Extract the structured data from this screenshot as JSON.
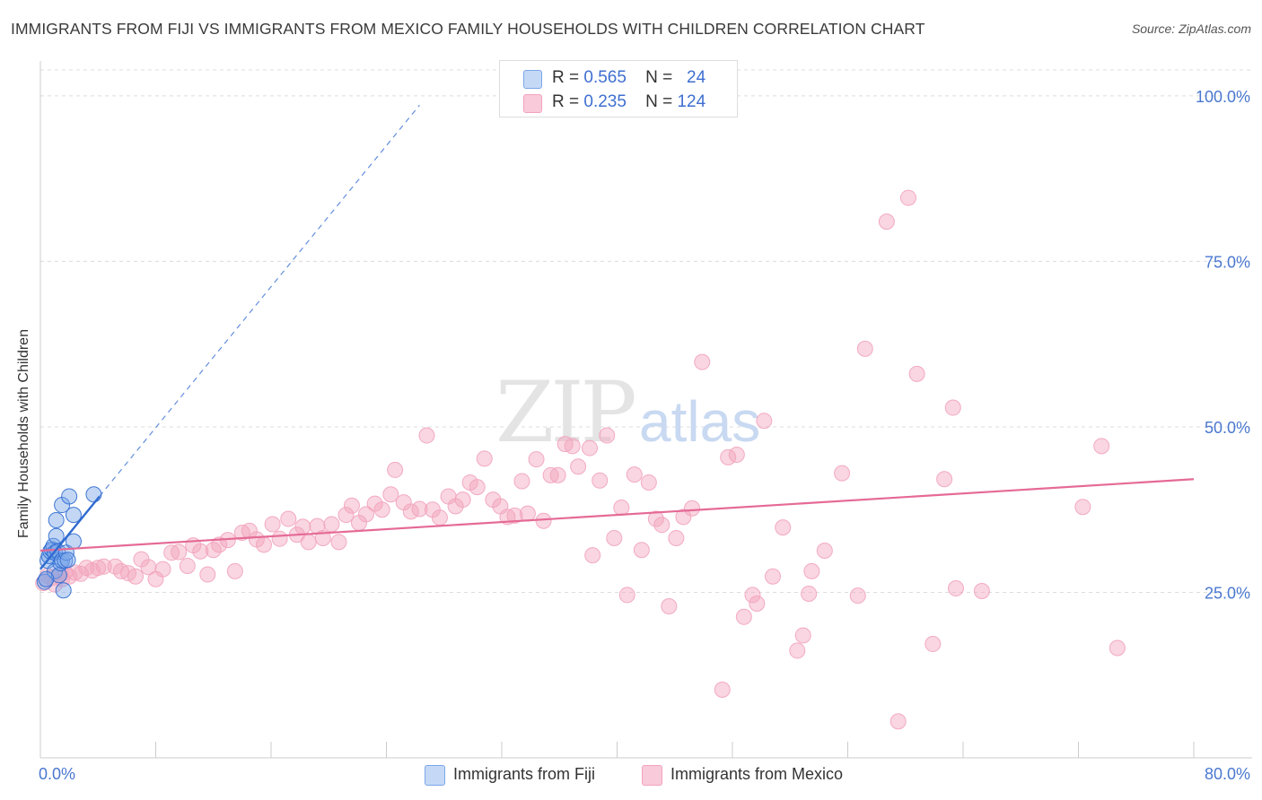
{
  "title": "IMMIGRANTS FROM FIJI VS IMMIGRANTS FROM MEXICO FAMILY HOUSEHOLDS WITH CHILDREN CORRELATION CHART",
  "source": "Source: ZipAtlas.com",
  "watermark": {
    "zip": "ZIP",
    "atlas": "atlas"
  },
  "legend": {
    "rows": [
      {
        "r_label": "R =",
        "r_value": "0.565",
        "n_label": "N =",
        "n_value": "24"
      },
      {
        "r_label": "R =",
        "r_value": "0.235",
        "n_label": "N =",
        "n_value": "124"
      }
    ]
  },
  "chart_data": {
    "type": "scatter",
    "title": "IMMIGRANTS FROM FIJI VS IMMIGRANTS FROM MEXICO FAMILY HOUSEHOLDS WITH CHILDREN CORRELATION CHART",
    "xlabel": "",
    "ylabel": "Family Households with Children",
    "xlim": [
      0,
      80
    ],
    "ylim": [
      0,
      105
    ],
    "x_tick_labels": [
      "0.0%",
      "80.0%"
    ],
    "y_tick_labels": [
      "25.0%",
      "50.0%",
      "75.0%",
      "100.0%"
    ],
    "y_ticks": [
      25,
      50,
      75,
      100
    ],
    "grid": true,
    "legend_placement": "bottom-center",
    "series": [
      {
        "name": "Immigrants from Fiji",
        "color": "#7aa6e8",
        "line_color": "#2f6ad0",
        "r": 0.565,
        "n": 24,
        "trend": {
          "x": [
            0,
            4.1
          ],
          "y": [
            28.5,
            39.5
          ]
        },
        "trend_extension": {
          "x": [
            4.1,
            26.3
          ],
          "y": [
            39.5,
            98.6
          ]
        },
        "points": [
          [
            0.3,
            26.6
          ],
          [
            0.5,
            29.8
          ],
          [
            0.6,
            30.5
          ],
          [
            0.7,
            31.2
          ],
          [
            0.8,
            31.5
          ],
          [
            0.9,
            32.0
          ],
          [
            1.0,
            28.2
          ],
          [
            1.0,
            31.0
          ],
          [
            1.1,
            35.9
          ],
          [
            1.1,
            33.5
          ],
          [
            1.2,
            31.2
          ],
          [
            1.3,
            27.6
          ],
          [
            1.4,
            29.4
          ],
          [
            1.5,
            38.2
          ],
          [
            1.5,
            29.8
          ],
          [
            1.6,
            25.3
          ],
          [
            1.7,
            29.8
          ],
          [
            1.8,
            31.0
          ],
          [
            1.9,
            29.9
          ],
          [
            2.0,
            39.5
          ],
          [
            2.3,
            32.7
          ],
          [
            2.3,
            36.7
          ],
          [
            3.7,
            39.8
          ],
          [
            0.4,
            27.0
          ]
        ]
      },
      {
        "name": "Immigrants from Mexico",
        "color": "#f2a3bd",
        "line_color": "#e56a96",
        "r": 0.235,
        "n": 124,
        "trend": {
          "x": [
            0,
            80
          ],
          "y": [
            31.3,
            42.1
          ]
        },
        "points": [
          [
            0.2,
            26.4
          ],
          [
            0.5,
            27.5
          ],
          [
            0.8,
            27.2
          ],
          [
            1.0,
            26.2
          ],
          [
            1.3,
            27.6
          ],
          [
            1.5,
            27.0
          ],
          [
            1.7,
            28.0
          ],
          [
            2.0,
            27.4
          ],
          [
            2.4,
            28.0
          ],
          [
            2.8,
            27.8
          ],
          [
            3.2,
            28.7
          ],
          [
            3.6,
            28.3
          ],
          [
            4.0,
            28.7
          ],
          [
            4.4,
            28.9
          ],
          [
            5.2,
            28.9
          ],
          [
            5.6,
            28.2
          ],
          [
            6.1,
            27.9
          ],
          [
            6.6,
            27.4
          ],
          [
            7.0,
            30.0
          ],
          [
            7.5,
            28.8
          ],
          [
            8.0,
            27.0
          ],
          [
            8.5,
            28.5
          ],
          [
            9.1,
            31.0
          ],
          [
            9.6,
            31.1
          ],
          [
            10.2,
            29.0
          ],
          [
            10.6,
            32.1
          ],
          [
            11.1,
            31.2
          ],
          [
            11.6,
            27.7
          ],
          [
            12.0,
            31.4
          ],
          [
            12.4,
            32.2
          ],
          [
            13.0,
            32.9
          ],
          [
            13.5,
            28.2
          ],
          [
            14.0,
            34.0
          ],
          [
            14.5,
            34.3
          ],
          [
            15.0,
            33.0
          ],
          [
            15.5,
            32.2
          ],
          [
            16.1,
            35.3
          ],
          [
            16.6,
            33.1
          ],
          [
            17.2,
            36.1
          ],
          [
            17.8,
            33.7
          ],
          [
            18.2,
            34.9
          ],
          [
            18.6,
            32.6
          ],
          [
            19.2,
            35.0
          ],
          [
            19.6,
            33.2
          ],
          [
            20.2,
            35.3
          ],
          [
            20.7,
            32.6
          ],
          [
            21.2,
            36.7
          ],
          [
            21.6,
            38.1
          ],
          [
            22.1,
            35.5
          ],
          [
            22.6,
            36.8
          ],
          [
            23.2,
            38.4
          ],
          [
            23.7,
            37.5
          ],
          [
            24.3,
            39.8
          ],
          [
            24.6,
            43.5
          ],
          [
            25.2,
            38.6
          ],
          [
            25.7,
            37.2
          ],
          [
            26.3,
            37.6
          ],
          [
            26.8,
            48.7
          ],
          [
            27.2,
            37.5
          ],
          [
            27.7,
            36.3
          ],
          [
            28.3,
            39.5
          ],
          [
            28.8,
            38.0
          ],
          [
            29.3,
            39.0
          ],
          [
            29.8,
            41.6
          ],
          [
            30.3,
            40.9
          ],
          [
            30.8,
            45.2
          ],
          [
            31.4,
            39.0
          ],
          [
            31.9,
            38.0
          ],
          [
            32.4,
            36.4
          ],
          [
            32.9,
            36.6
          ],
          [
            33.4,
            41.8
          ],
          [
            33.8,
            36.9
          ],
          [
            34.4,
            45.1
          ],
          [
            34.9,
            35.8
          ],
          [
            35.4,
            42.7
          ],
          [
            35.9,
            42.7
          ],
          [
            36.4,
            47.4
          ],
          [
            36.9,
            47.1
          ],
          [
            37.3,
            44.0
          ],
          [
            38.1,
            46.8
          ],
          [
            38.3,
            30.6
          ],
          [
            38.8,
            41.9
          ],
          [
            39.3,
            48.7
          ],
          [
            39.8,
            33.2
          ],
          [
            40.3,
            37.8
          ],
          [
            40.7,
            24.6
          ],
          [
            41.2,
            42.8
          ],
          [
            41.7,
            31.4
          ],
          [
            42.2,
            41.6
          ],
          [
            42.7,
            36.1
          ],
          [
            43.1,
            35.2
          ],
          [
            43.6,
            22.9
          ],
          [
            44.1,
            33.2
          ],
          [
            44.6,
            36.4
          ],
          [
            45.2,
            37.7
          ],
          [
            45.9,
            59.8
          ],
          [
            47.3,
            10.3
          ],
          [
            47.7,
            45.4
          ],
          [
            48.3,
            45.8
          ],
          [
            48.8,
            21.3
          ],
          [
            49.4,
            24.6
          ],
          [
            49.7,
            23.3
          ],
          [
            50.2,
            50.9
          ],
          [
            50.8,
            27.4
          ],
          [
            51.5,
            34.8
          ],
          [
            52.5,
            16.2
          ],
          [
            52.9,
            18.5
          ],
          [
            53.3,
            24.8
          ],
          [
            53.5,
            28.2
          ],
          [
            54.4,
            31.3
          ],
          [
            55.6,
            43.0
          ],
          [
            56.7,
            24.5
          ],
          [
            57.2,
            61.8
          ],
          [
            58.7,
            81.0
          ],
          [
            59.5,
            5.5
          ],
          [
            60.2,
            84.6
          ],
          [
            60.8,
            58.0
          ],
          [
            61.9,
            17.2
          ],
          [
            62.7,
            42.1
          ],
          [
            63.3,
            52.9
          ],
          [
            63.5,
            25.6
          ],
          [
            65.3,
            25.2
          ],
          [
            72.3,
            37.9
          ],
          [
            73.6,
            47.1
          ],
          [
            74.7,
            16.6
          ]
        ]
      }
    ]
  }
}
